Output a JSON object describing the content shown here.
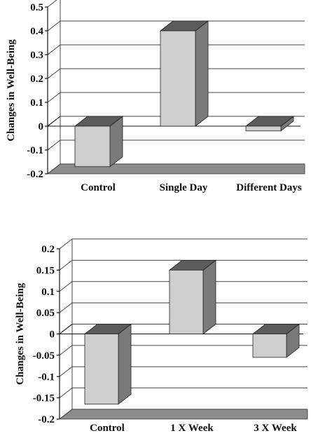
{
  "chart_data": [
    {
      "type": "bar",
      "style": "3d",
      "ylabel": "Changes in Well-Being",
      "categories": [
        "Control",
        "Single Day",
        "Different Days"
      ],
      "values": [
        -0.17,
        0.4,
        -0.02
      ],
      "ylim": [
        -0.2,
        0.5
      ],
      "yticks": [
        "0.5",
        "0.4",
        "0.3",
        "0.2",
        "0.1",
        "0",
        "-0.1",
        "-0.2"
      ],
      "grid": true
    },
    {
      "type": "bar",
      "style": "3d",
      "ylabel": "Changes in Well-Being",
      "categories": [
        "Control",
        "1 X Week",
        "3 X Week"
      ],
      "values": [
        -0.165,
        0.15,
        -0.055
      ],
      "ylim": [
        -0.2,
        0.2
      ],
      "yticks": [
        "0.2",
        "0.15",
        "0.1",
        "0.05",
        "0",
        "-0.05",
        "-0.1",
        "-0.15",
        "-0.2"
      ],
      "grid": true
    }
  ],
  "colors": {
    "bar_front": "#cfcfcf",
    "bar_side": "#7a7a7a",
    "bar_top": "#5c5c5c",
    "floor": "#8c8c8c",
    "grid": "#444444"
  }
}
